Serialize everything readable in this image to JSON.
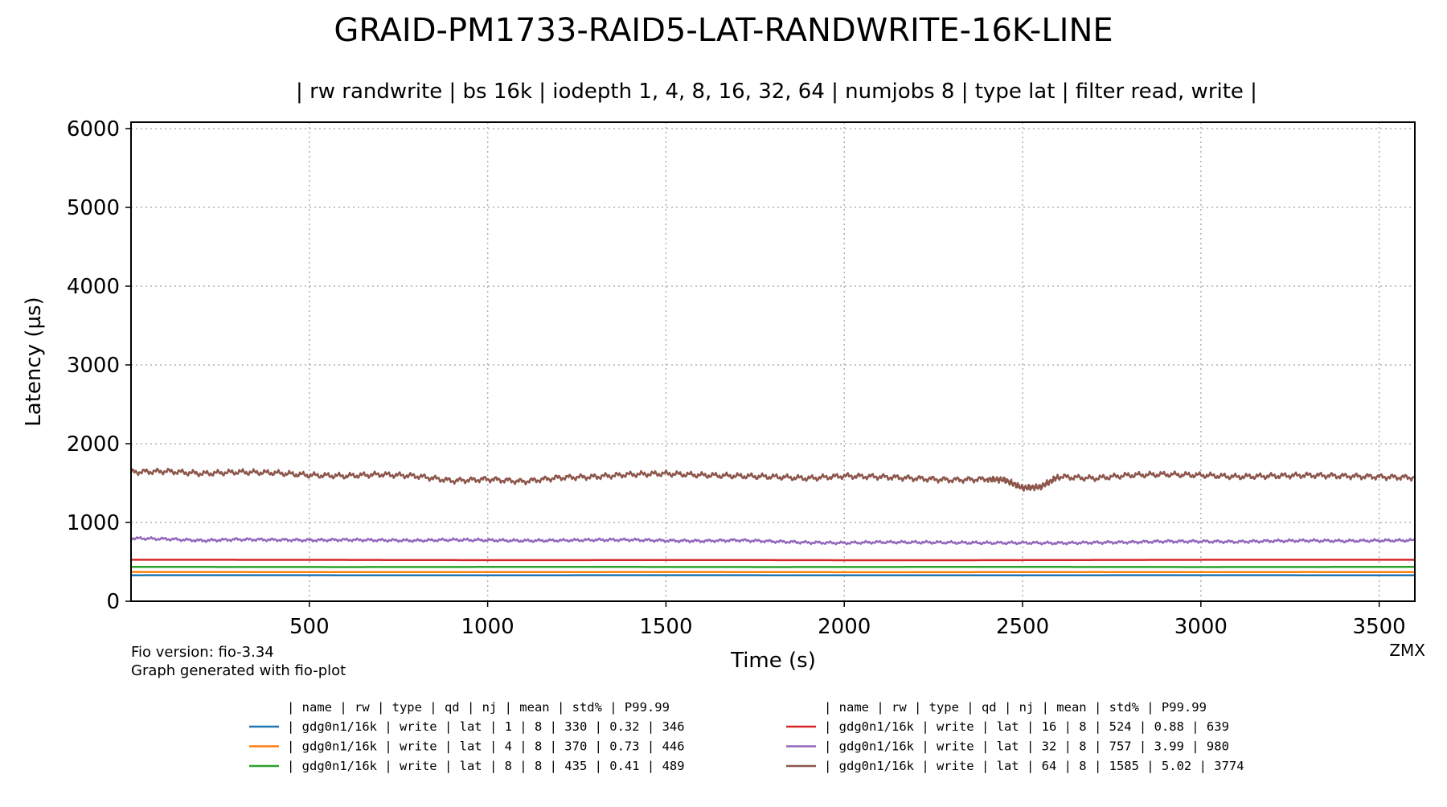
{
  "chart_data": {
    "type": "line",
    "title": "GRAID-PM1733-RAID5-LAT-RANDWRITE-16K-LINE",
    "subtitle": "| rw randwrite | bs 16k | iodepth 1, 4, 8, 16, 32, 64 | numjobs 8 | type lat | filter read, write |",
    "xlabel": "Time (s)",
    "ylabel": "Latency (µs)",
    "xlim": [
      0,
      3600
    ],
    "ylim": [
      0,
      6100
    ],
    "x_ticks": [
      500,
      1000,
      1500,
      2000,
      2500,
      3000,
      3500
    ],
    "y_ticks": [
      0,
      1000,
      2000,
      3000,
      4000,
      5000,
      6000
    ],
    "grid": true,
    "grid_style": "dotted",
    "legend_position": "bottom",
    "legend_header": "| name       | rw    | type | qd | nj | mean | std% | P99.99",
    "series": [
      {
        "color": "#1f77b4",
        "legend_row": "| gdg0n1/16k | write |  lat |  1 |  8 |  330 | 0.32 |  346",
        "x": [
          0,
          300,
          600,
          900,
          1200,
          1500,
          1800,
          2100,
          2400,
          2700,
          3000,
          3300,
          3600
        ],
        "y": [
          330,
          331,
          330,
          329,
          330,
          331,
          330,
          329,
          330,
          330,
          331,
          330,
          330
        ]
      },
      {
        "color": "#ff7f0e",
        "legend_row": "| gdg0n1/16k | write |  lat |  4 |  8 |  370 | 0.73 |  446",
        "x": [
          0,
          300,
          600,
          900,
          1200,
          1500,
          1800,
          2100,
          2400,
          2700,
          3000,
          3300,
          3600
        ],
        "y": [
          372,
          371,
          370,
          369,
          370,
          372,
          370,
          368,
          369,
          371,
          370,
          371,
          370
        ]
      },
      {
        "color": "#2ca02c",
        "legend_row": "| gdg0n1/16k | write |  lat |  8 |  8 |  435 | 0.41 |  489",
        "x": [
          0,
          300,
          600,
          900,
          1200,
          1500,
          1800,
          2100,
          2400,
          2700,
          3000,
          3300,
          3600
        ],
        "y": [
          436,
          435,
          434,
          435,
          436,
          435,
          434,
          435,
          436,
          435,
          434,
          435,
          436
        ]
      },
      {
        "color": "#d62728",
        "legend_row": "| gdg0n1/16k | write |  lat | 16 |  8 |  524 | 0.88 |  639",
        "x": [
          0,
          300,
          600,
          900,
          1200,
          1500,
          1800,
          2100,
          2400,
          2700,
          3000,
          3300,
          3600
        ],
        "y": [
          527,
          526,
          525,
          522,
          521,
          524,
          522,
          520,
          521,
          524,
          526,
          527,
          526
        ]
      },
      {
        "color": "#9467bd",
        "legend_row": "| gdg0n1/16k | write |  lat | 32 |  8 |  757 | 3.99 |  980",
        "x": [
          0,
          100,
          200,
          300,
          400,
          500,
          600,
          700,
          800,
          900,
          1000,
          1100,
          1200,
          1300,
          1400,
          1500,
          1600,
          1700,
          1800,
          1900,
          2000,
          2100,
          2200,
          2300,
          2400,
          2500,
          2600,
          2700,
          2800,
          2900,
          3000,
          3100,
          3200,
          3300,
          3400,
          3500,
          3600
        ],
        "y": [
          800,
          790,
          770,
          785,
          780,
          775,
          780,
          775,
          770,
          780,
          775,
          768,
          772,
          778,
          780,
          770,
          765,
          775,
          760,
          745,
          740,
          750,
          748,
          745,
          740,
          742,
          738,
          745,
          750,
          760,
          760,
          755,
          765,
          770,
          765,
          770,
          772
        ]
      },
      {
        "color": "#8c564b",
        "legend_row": "| gdg0n1/16k | write |  lat | 64 |  8 | 1585 | 5.02 | 3774",
        "x": [
          0,
          100,
          200,
          300,
          400,
          500,
          600,
          700,
          800,
          900,
          1000,
          1100,
          1200,
          1300,
          1400,
          1500,
          1600,
          1700,
          1800,
          1900,
          2000,
          2100,
          2200,
          2300,
          2400,
          2450,
          2500,
          2550,
          2600,
          2700,
          2800,
          2900,
          3000,
          3100,
          3200,
          3300,
          3400,
          3500,
          3600
        ],
        "y": [
          1640,
          1650,
          1620,
          1640,
          1630,
          1600,
          1590,
          1610,
          1590,
          1530,
          1550,
          1520,
          1570,
          1580,
          1610,
          1620,
          1600,
          1590,
          1580,
          1560,
          1590,
          1580,
          1560,
          1540,
          1550,
          1540,
          1440,
          1450,
          1580,
          1560,
          1600,
          1610,
          1600,
          1580,
          1590,
          1600,
          1590,
          1580,
          1570
        ]
      }
    ],
    "footer_left": [
      "Fio version: fio-3.34",
      "Graph generated with fio-plot"
    ],
    "footer_right": "ZMX"
  }
}
